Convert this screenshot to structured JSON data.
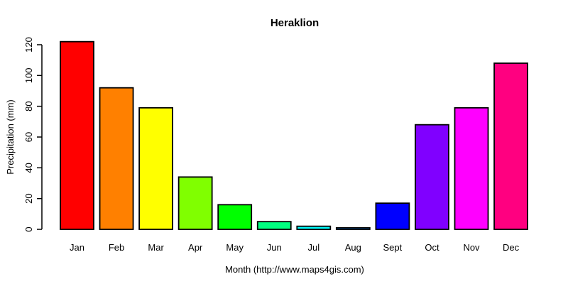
{
  "chart_data": {
    "type": "bar",
    "title": "Heraklion",
    "xlabel": "Month (http://www.maps4gis.com)",
    "ylabel": "Precipitation (mm)",
    "categories": [
      "Jan",
      "Feb",
      "Mar",
      "Apr",
      "May",
      "Jun",
      "Jul",
      "Aug",
      "Sept",
      "Oct",
      "Nov",
      "Dec"
    ],
    "values": [
      122,
      92,
      79,
      34,
      16,
      5,
      2,
      1,
      17,
      68,
      79,
      108
    ],
    "bar_colors": [
      "#FF0000",
      "#FF8000",
      "#FFFF00",
      "#80FF00",
      "#00FF00",
      "#00FF80",
      "#00FFFF",
      "#0080FF",
      "#0000FF",
      "#8000FF",
      "#FF00FF",
      "#FF0080"
    ],
    "yticks": [
      0,
      20,
      40,
      60,
      80,
      100,
      120
    ],
    "ylim": [
      0,
      120
    ],
    "grid": false,
    "legend_position": "none",
    "bar_border_color": "#000000",
    "axis_color": "#000000",
    "text_color": "#000000",
    "background": "#FFFFFF"
  }
}
